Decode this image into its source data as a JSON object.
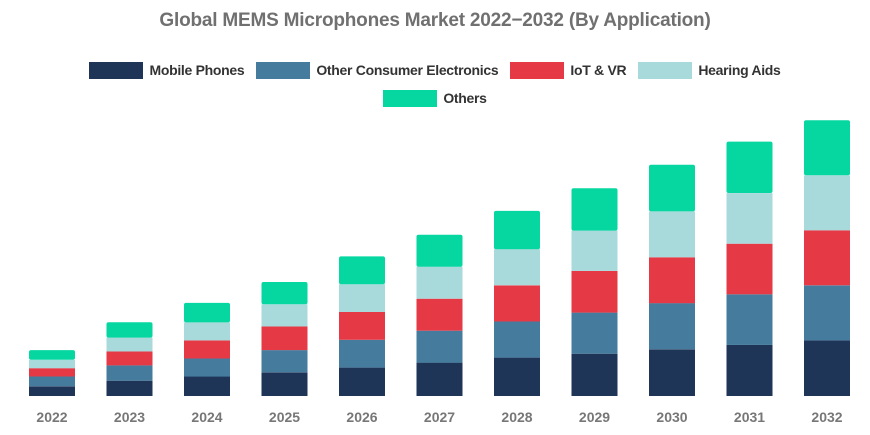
{
  "chart_data": {
    "type": "bar",
    "stacked": true,
    "title": "Global MEMS Microphones Market 2022−2032 (By Application)",
    "xlabel": "",
    "ylabel": "",
    "categories": [
      "2022",
      "2023",
      "2024",
      "2025",
      "2026",
      "2027",
      "2028",
      "2029",
      "2030",
      "2031",
      "2032"
    ],
    "ylim": [
      0,
      100
    ],
    "grid": false,
    "legend_position": "top-center",
    "series": [
      {
        "name": "Mobile Phones",
        "color": "#1e3557",
        "values": [
          3.5,
          5.5,
          7.0,
          8.5,
          10.2,
          12.0,
          13.8,
          15.2,
          16.8,
          18.4,
          20.0
        ]
      },
      {
        "name": "Other Consumer Electronics",
        "color": "#457b9d",
        "values": [
          3.5,
          5.5,
          6.5,
          8.0,
          10.0,
          11.5,
          13.0,
          14.8,
          16.6,
          18.2,
          19.8
        ]
      },
      {
        "name": "IoT & VR",
        "color": "#e63946",
        "values": [
          3.0,
          5.0,
          6.5,
          8.5,
          10.0,
          11.5,
          13.0,
          15.0,
          16.5,
          18.2,
          19.8
        ]
      },
      {
        "name": "Hearing Aids",
        "color": "#a8dadc",
        "values": [
          3.0,
          5.0,
          6.5,
          8.0,
          10.0,
          11.5,
          13.0,
          14.5,
          16.5,
          18.2,
          19.8
        ]
      },
      {
        "name": "Others",
        "color": "#06d6a0",
        "values": [
          3.5,
          5.5,
          7.0,
          8.0,
          10.0,
          11.5,
          13.8,
          15.2,
          16.8,
          18.5,
          19.8
        ]
      }
    ]
  }
}
